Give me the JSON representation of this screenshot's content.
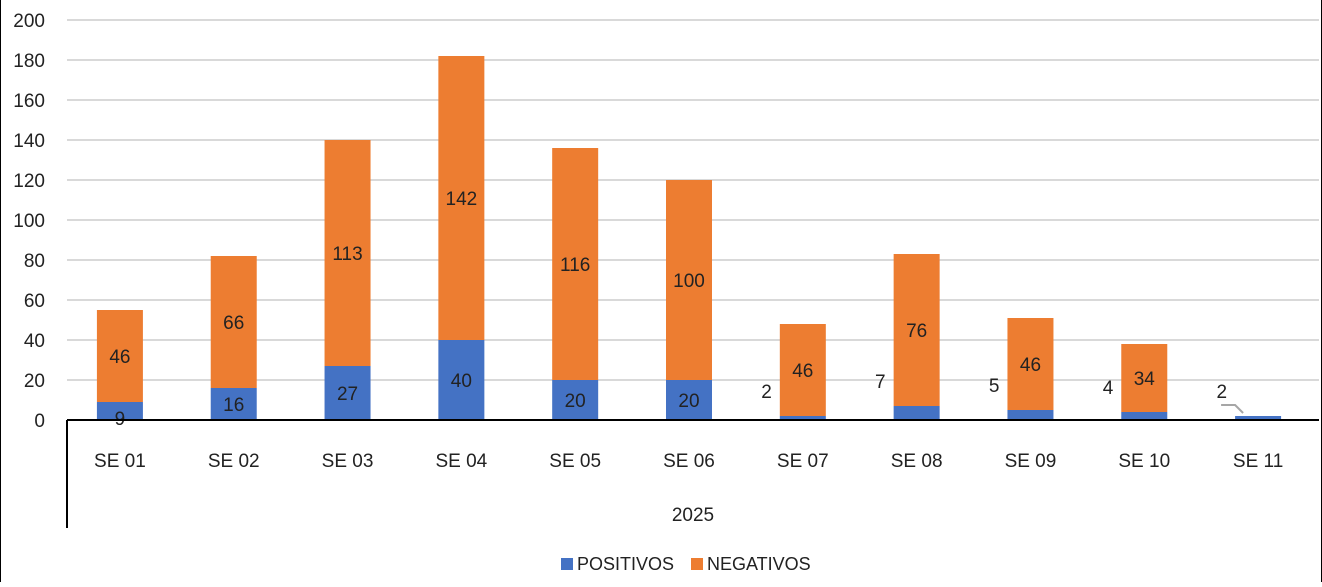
{
  "chart_data": {
    "type": "bar",
    "stacked": true,
    "categories": [
      "SE 01",
      "SE 02",
      "SE 03",
      "SE 04",
      "SE 05",
      "SE 06",
      "SE 07",
      "SE 08",
      "SE 09",
      "SE 10",
      "SE 11"
    ],
    "group_label": "2025",
    "series": [
      {
        "name": "POSITIVOS",
        "color": "#4472C4",
        "values": [
          9,
          16,
          27,
          40,
          20,
          20,
          2,
          7,
          5,
          4,
          2
        ]
      },
      {
        "name": "NEGATIVOS",
        "color": "#ED7D31",
        "values": [
          46,
          66,
          113,
          142,
          116,
          100,
          46,
          76,
          46,
          34,
          0
        ]
      }
    ],
    "negativos_labels": [
      "46",
      "66",
      "113",
      "142",
      "116",
      "100",
      "46",
      "76",
      "46",
      "34",
      ""
    ],
    "ylim": [
      0,
      200
    ],
    "yticks": [
      0,
      20,
      40,
      60,
      80,
      100,
      120,
      140,
      160,
      180,
      200
    ],
    "grid": true,
    "legend_position": "bottom"
  }
}
